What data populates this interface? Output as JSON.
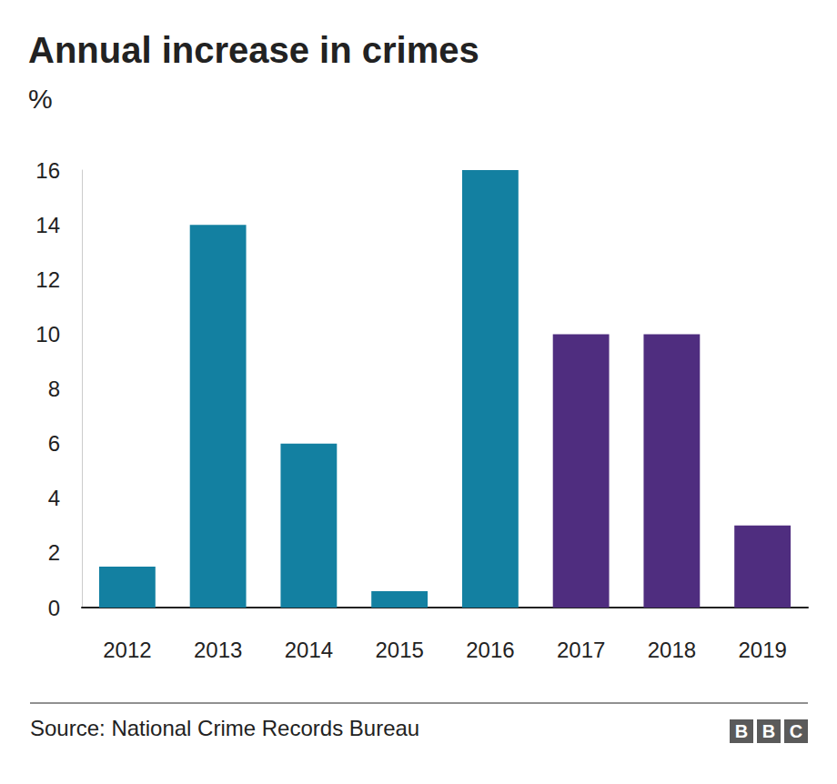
{
  "chart_data": {
    "type": "bar",
    "title": "Annual increase in crimes",
    "subtitle": "%",
    "categories": [
      "2012",
      "2013",
      "2014",
      "2015",
      "2016",
      "2017",
      "2018",
      "2019"
    ],
    "values": [
      1.5,
      14,
      6,
      0.6,
      16,
      10,
      10,
      3
    ],
    "colors": [
      "#1380a1",
      "#1380a1",
      "#1380a1",
      "#1380a1",
      "#1380a1",
      "#4f2d7f",
      "#4f2d7f",
      "#4f2d7f"
    ],
    "ylim": [
      0,
      16
    ],
    "yticks": [
      0,
      2,
      4,
      6,
      8,
      10,
      12,
      14,
      16
    ],
    "grid": false,
    "data_labels": false,
    "source": "Source: National Crime Records Bureau",
    "logo": "BBC"
  }
}
